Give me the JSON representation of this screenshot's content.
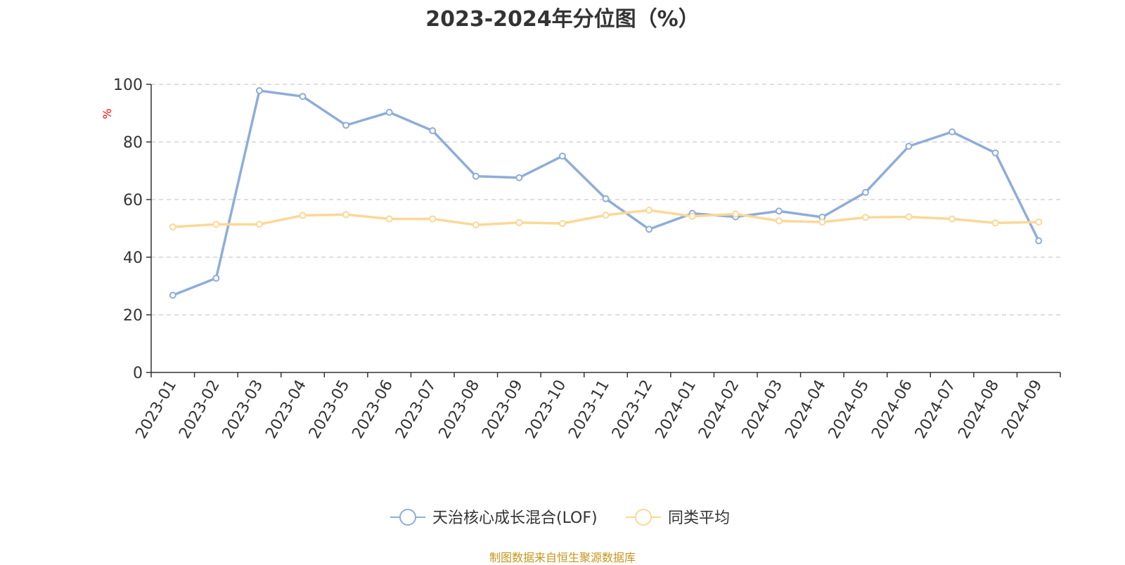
{
  "chart_data": {
    "type": "line",
    "title": "2023-2024年分位图（%）",
    "ylabel": "%",
    "ylim": [
      0,
      100
    ],
    "yticks": [
      0,
      20,
      40,
      60,
      80,
      100
    ],
    "grid": true,
    "legend_position": "bottom-center",
    "categories": [
      "2023-01",
      "2023-02",
      "2023-03",
      "2023-04",
      "2023-05",
      "2023-06",
      "2023-07",
      "2023-08",
      "2023-09",
      "2023-10",
      "2023-11",
      "2023-12",
      "2024-01",
      "2024-02",
      "2024-03",
      "2024-04",
      "2024-05",
      "2024-06",
      "2024-07",
      "2024-08",
      "2024-09"
    ],
    "series": [
      {
        "name": "天治核心成长混合(LOF)",
        "color": "#8eadd8",
        "values": [
          26.8,
          32.7,
          97.8,
          95.8,
          85.8,
          90.3,
          83.9,
          68.1,
          67.6,
          75.1,
          60.3,
          49.7,
          55.2,
          54.0,
          56.0,
          53.9,
          62.5,
          78.5,
          83.5,
          76.2,
          45.7
        ]
      },
      {
        "name": "同类平均",
        "color": "#fbd896",
        "values": [
          50.5,
          51.4,
          51.4,
          54.5,
          54.8,
          53.3,
          53.3,
          51.2,
          52.0,
          51.7,
          54.6,
          56.3,
          54.2,
          55.0,
          52.6,
          52.2,
          53.8,
          54.0,
          53.3,
          51.9,
          52.2
        ]
      }
    ]
  },
  "source_note": "制图数据来自恒生聚源数据库"
}
